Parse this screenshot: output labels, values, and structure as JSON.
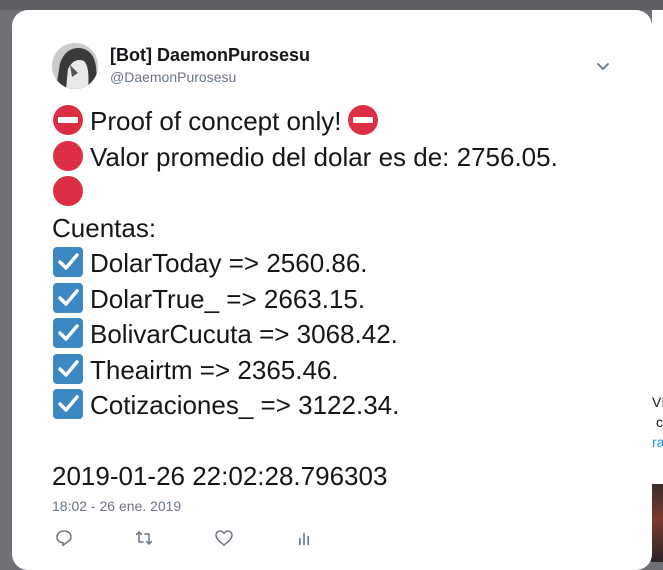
{
  "tweet": {
    "author_name": "[Bot] DaemonPurosesu",
    "author_handle": "@DaemonPurosesu",
    "lines": {
      "l1": "Proof of concept only!",
      "l2": "Valor promedio del dolar es de: 2756.05.",
      "l4": "Cuentas:",
      "l5": "DolarToday => 2560.86.",
      "l6": "DolarTrue_ => 2663.15.",
      "l7": "BolivarCucuta => 3068.42.",
      "l8": "Theairtm => 2365.46.",
      "l9": "Cotizaciones_ => 3122.34.",
      "l11": "2019-01-26 22:02:28.796303"
    },
    "timestamp": "18:02 - 26 ene. 2019"
  },
  "icons": {
    "no_entry": "no-entry-emoji",
    "red_circle": "red-circle-emoji",
    "check_box": "ballot-box-with-check-emoji",
    "reply": "reply-icon",
    "retweet": "retweet-icon",
    "like": "heart-icon",
    "analytics": "analytics-icon",
    "caret": "chevron-down-icon"
  },
  "colors": {
    "text": "#14171a",
    "secondary": "#657786",
    "link": "#1b95e0",
    "no_entry_red": "#dd2e44",
    "check_blue": "#3b88c3"
  },
  "background": {
    "peek_1": "VIA",
    "peek_2": "c",
    "peek_3": "ra"
  }
}
